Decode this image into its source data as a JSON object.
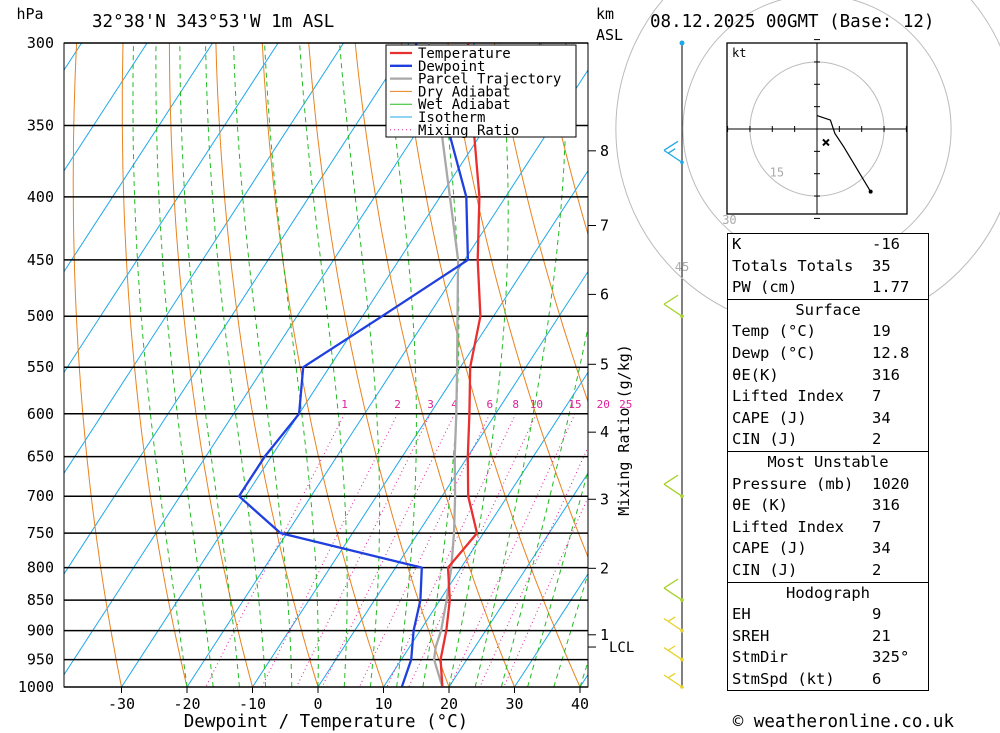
{
  "header": {
    "hpa_unit": "hPa",
    "location": "32°38'N  343°53'W  1m  ASL",
    "km_unit": "km",
    "asl_unit": "ASL",
    "datetime": "08.12.2025  00GMT  (Base: 12)"
  },
  "footer": {
    "credit": "© weatheronline.co.uk"
  },
  "colors": {
    "temperature": "#e8302f",
    "dewpoint": "#1f3fdf",
    "parcel": "#a8a8a8",
    "dry_adiabat": "#e8821e",
    "wet_adiabat": "#22bb22",
    "isotherm": "#20a8e8",
    "mixing_ratio": "#e0209a"
  },
  "legend": [
    "Temperature",
    "Dewpoint",
    "Parcel Trajectory",
    "Dry Adiabat",
    "Wet Adiabat",
    "Isotherm",
    "Mixing Ratio"
  ],
  "chart_data": {
    "type": "line",
    "xlabel": "Dewpoint / Temperature (°C)",
    "y2label": "Mixing Ratio (g/kg)",
    "y_scale": "log",
    "pressure_levels": [
      300,
      350,
      400,
      450,
      500,
      550,
      600,
      650,
      700,
      750,
      800,
      850,
      900,
      950,
      1000
    ],
    "temp_ticks": [
      -30,
      -20,
      -10,
      0,
      10,
      20,
      30,
      40
    ],
    "km_ticks": [
      {
        "label": "8",
        "p": 367
      },
      {
        "label": "7",
        "p": 422
      },
      {
        "label": "6",
        "p": 480
      },
      {
        "label": "5",
        "p": 547
      },
      {
        "label": "4",
        "p": 621
      },
      {
        "label": "3",
        "p": 704
      },
      {
        "label": "2",
        "p": 801
      },
      {
        "label": "1",
        "p": 907
      }
    ],
    "lcl": {
      "label": "LCL",
      "p": 928
    },
    "mixing_ratio_labels": [
      "1",
      "2",
      "3",
      "4",
      "6",
      "8",
      "10",
      "15",
      "20",
      "25"
    ],
    "series": [
      {
        "name": "Temperature",
        "points": [
          [
            1000,
            19
          ],
          [
            950,
            16
          ],
          [
            900,
            14
          ],
          [
            850,
            11.5
          ],
          [
            800,
            8
          ],
          [
            750,
            9
          ],
          [
            700,
            4
          ],
          [
            650,
            0
          ],
          [
            600,
            -4
          ],
          [
            550,
            -8.5
          ],
          [
            500,
            -12
          ],
          [
            450,
            -18
          ],
          [
            400,
            -24
          ],
          [
            350,
            -32
          ],
          [
            300,
            -41
          ]
        ]
      },
      {
        "name": "Dewpoint",
        "points": [
          [
            1000,
            12.8
          ],
          [
            950,
            11.5
          ],
          [
            900,
            9
          ],
          [
            850,
            7
          ],
          [
            800,
            4
          ],
          [
            750,
            -21
          ],
          [
            700,
            -31
          ],
          [
            650,
            -31
          ],
          [
            600,
            -30
          ],
          [
            550,
            -34
          ],
          [
            500,
            -27
          ],
          [
            450,
            -19.5
          ],
          [
            400,
            -26
          ],
          [
            350,
            -36
          ],
          [
            300,
            -49
          ]
        ]
      },
      {
        "name": "Parcel Trajectory",
        "points": [
          [
            1000,
            19
          ],
          [
            950,
            15
          ],
          [
            928,
            14
          ],
          [
            900,
            13.2
          ],
          [
            850,
            11
          ],
          [
            800,
            8.5
          ],
          [
            750,
            5.5
          ],
          [
            700,
            2
          ],
          [
            650,
            -2
          ],
          [
            600,
            -6
          ],
          [
            550,
            -10.5
          ],
          [
            500,
            -15.5
          ],
          [
            450,
            -21
          ],
          [
            400,
            -28.5
          ],
          [
            350,
            -37
          ],
          [
            300,
            -47
          ]
        ]
      }
    ],
    "winds": [
      {
        "p": 300,
        "kind": "circle"
      },
      {
        "p": 375,
        "kind": "barb",
        "speed": 15
      },
      {
        "p": 500,
        "kind": "barb",
        "speed": 10
      },
      {
        "p": 700,
        "kind": "barb",
        "speed": 10
      },
      {
        "p": 850,
        "kind": "barb",
        "speed": 10
      },
      {
        "p": 900,
        "kind": "barb",
        "speed": 5
      },
      {
        "p": 950,
        "kind": "barb",
        "speed": 5
      },
      {
        "p": 1000,
        "kind": "barb",
        "speed": 5
      }
    ]
  },
  "hodograph": {
    "unit": "kt",
    "ring_labels": [
      "15",
      "30",
      "45"
    ],
    "trace_kt": [
      [
        0,
        3
      ],
      [
        3,
        2
      ],
      [
        4,
        -1
      ],
      [
        6,
        -4
      ],
      [
        12,
        -14
      ]
    ],
    "storm_kt": [
      2,
      -3
    ]
  },
  "indices": {
    "top": [
      {
        "label": "K",
        "value": "-16"
      },
      {
        "label": "Totals Totals",
        "value": "35"
      },
      {
        "label": "PW (cm)",
        "value": "1.77"
      }
    ],
    "surface": {
      "title": "Surface",
      "rows": [
        {
          "label": "Temp (°C)",
          "value": "19"
        },
        {
          "label": "Dewp (°C)",
          "value": "12.8"
        },
        {
          "label": "θE(K)",
          "value": "316"
        },
        {
          "label": "Lifted Index",
          "value": "7"
        },
        {
          "label": "CAPE (J)",
          "value": "34"
        },
        {
          "label": "CIN (J)",
          "value": "2"
        }
      ]
    },
    "most_unstable": {
      "title": "Most Unstable",
      "rows": [
        {
          "label": "Pressure (mb)",
          "value": "1020"
        },
        {
          "label": "θE (K)",
          "value": "316"
        },
        {
          "label": "Lifted Index",
          "value": "7"
        },
        {
          "label": "CAPE (J)",
          "value": "34"
        },
        {
          "label": "CIN (J)",
          "value": "2"
        }
      ]
    },
    "hodograph": {
      "title": "Hodograph",
      "rows": [
        {
          "label": "EH",
          "value": "9"
        },
        {
          "label": "SREH",
          "value": "21"
        },
        {
          "label": "StmDir",
          "value": "325°"
        },
        {
          "label": "StmSpd (kt)",
          "value": "6"
        }
      ]
    }
  }
}
